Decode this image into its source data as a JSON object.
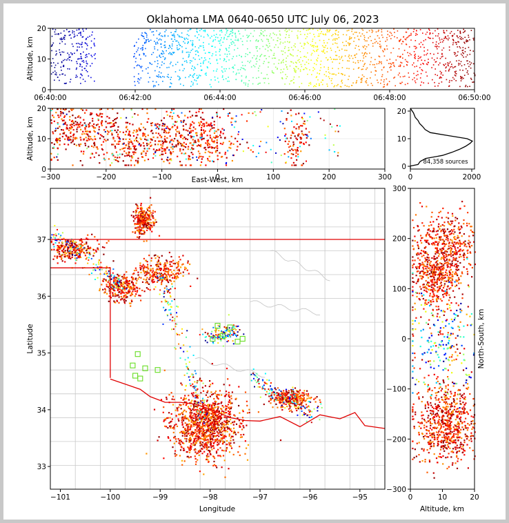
{
  "chart_data": [
    {
      "type": "scatter",
      "panel": "altitude-vs-time",
      "title": "Oklahoma LMA 0640-0650 UTC July 06, 2023",
      "ylabel": "Altitude, km",
      "xlim": [
        "06:40:00",
        "06:50:00"
      ],
      "ylim": [
        0,
        20
      ],
      "xticks": [
        "06:40:00",
        "06:42:00",
        "06:44:00",
        "06:46:00",
        "06:48:00",
        "06:50:00"
      ],
      "yticks": [
        "0",
        "10",
        "20"
      ],
      "color_scale": "time (jet colormap, blue = early, dark red = late)",
      "density_bands": [
        {
          "x0": 0.0,
          "x1": 1.05,
          "ymin": 2,
          "ymax": 20
        },
        {
          "x0": 1.95,
          "x1": 10.0,
          "ymin": 1,
          "ymax": 20
        }
      ]
    },
    {
      "type": "scatter",
      "panel": "altitude-vs-east-west",
      "xlabel": "East-West, km",
      "ylabel": "Altitude, km",
      "xlim": [
        -300,
        300
      ],
      "ylim": [
        0,
        20
      ],
      "xticks": [
        "−300",
        "−200",
        "−100",
        "0",
        "100",
        "200",
        "300"
      ],
      "yticks": [
        "0",
        "10",
        "20"
      ],
      "clusters": [
        {
          "x": -255,
          "y": 13,
          "sx": 40,
          "sy": 4.5
        },
        {
          "x": -160,
          "y": 9,
          "sx": 18,
          "sy": 4
        },
        {
          "x": -95,
          "y": 10,
          "sx": 22,
          "sy": 4.5
        },
        {
          "x": -20,
          "y": 10,
          "sx": 30,
          "sy": 5
        },
        {
          "x": 140,
          "y": 10,
          "sx": 10,
          "sy": 5
        }
      ]
    },
    {
      "type": "line",
      "panel": "altitude-histogram",
      "label": "84,358 sources",
      "xlim": [
        0,
        2000
      ],
      "ylim": [
        0,
        20
      ],
      "xticks": [
        "0",
        "2000"
      ],
      "yticks": [
        "0",
        "10",
        "20"
      ],
      "counts_km": [
        0,
        0,
        250,
        320,
        500,
        1050,
        1350,
        1600,
        1800,
        1950,
        2020,
        1850,
        1250,
        650,
        480,
        400,
        300,
        250,
        160,
        100,
        0
      ],
      "altitudes_km": [
        0,
        1,
        1.5,
        2.5,
        3.5,
        4.5,
        5.5,
        6.5,
        7.5,
        8.5,
        9.2,
        10,
        11,
        12,
        13,
        14,
        15,
        16,
        17,
        18.5,
        20
      ]
    },
    {
      "type": "scatter",
      "panel": "plan-view-map",
      "xlabel": "Longitude",
      "ylabel": "Latitude",
      "xlim": [
        -101.2,
        -94.5
      ],
      "ylim": [
        32.6,
        37.9
      ],
      "xticks": [
        "−101",
        "−100",
        "−99",
        "−98",
        "−97",
        "−96",
        "−95"
      ],
      "yticks": [
        "33",
        "34",
        "35",
        "36",
        "37"
      ],
      "storms": [
        {
          "lon": -98.1,
          "lat": 33.75,
          "slon": 0.35,
          "slat": 0.3
        },
        {
          "lon": -99.0,
          "lat": 36.45,
          "slon": 0.25,
          "slat": 0.15
        },
        {
          "lon": -99.8,
          "lat": 36.15,
          "slon": 0.18,
          "slat": 0.12
        },
        {
          "lon": -100.8,
          "lat": 36.85,
          "slon": 0.3,
          "slat": 0.1
        },
        {
          "lon": -96.4,
          "lat": 34.2,
          "slon": 0.2,
          "slat": 0.08
        },
        {
          "lon": -99.35,
          "lat": 37.35,
          "slon": 0.1,
          "slat": 0.12
        }
      ],
      "stations": [
        [
          -97.85,
          35.48
        ],
        [
          -97.6,
          35.45
        ],
        [
          -97.75,
          35.3
        ],
        [
          -97.45,
          35.2
        ],
        [
          -97.35,
          35.25
        ],
        [
          -99.45,
          34.98
        ],
        [
          -99.55,
          34.78
        ],
        [
          -99.3,
          34.73
        ],
        [
          -99.05,
          34.7
        ],
        [
          -99.5,
          34.6
        ],
        [
          -99.4,
          34.55
        ],
        [
          -97.95,
          35.25
        ]
      ]
    },
    {
      "type": "scatter",
      "panel": "north-south-vs-altitude",
      "xlabel": "Altitude, km",
      "ylabel": "North-South, km",
      "xlim": [
        0,
        20
      ],
      "ylim": [
        -300,
        300
      ],
      "xticks": [
        "0",
        "10",
        "20"
      ],
      "yticks": [
        "−300",
        "−200",
        "−100",
        "0",
        "100",
        "200",
        "300"
      ],
      "clusters": [
        {
          "alt": 8,
          "ns": 125,
          "salt": 3.5,
          "sns": 30
        },
        {
          "alt": 11,
          "ns": 190,
          "salt": 5,
          "sns": 30
        },
        {
          "alt": 11,
          "ns": -170,
          "salt": 5,
          "sns": 40
        },
        {
          "alt": 10,
          "ns": 0,
          "salt": 6,
          "sns": 60
        }
      ]
    }
  ]
}
